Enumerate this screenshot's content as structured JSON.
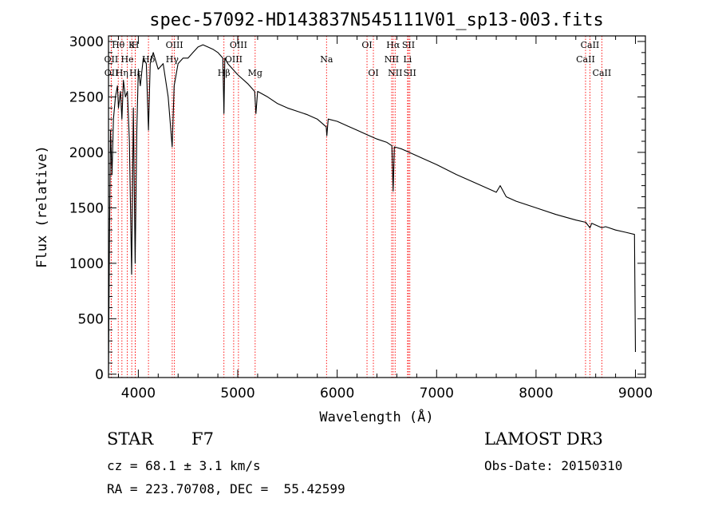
{
  "chart_data": {
    "type": "line",
    "title": "spec-57092-HD143837N545111V01_sp13-003.fits",
    "xlabel": "Wavelength (Å)",
    "ylabel": "Flux (relative)",
    "xlim": [
      3700,
      9100
    ],
    "ylim": [
      -30,
      3050
    ],
    "xticks": [
      4000,
      5000,
      6000,
      7000,
      8000,
      9000
    ],
    "yticks": [
      0,
      500,
      1000,
      1500,
      2000,
      2500,
      3000
    ],
    "grid": false,
    "spectrum": {
      "name": "flux",
      "x": [
        3700,
        3710,
        3720,
        3735,
        3750,
        3770,
        3790,
        3800,
        3820,
        3835,
        3850,
        3870,
        3890,
        3910,
        3933,
        3950,
        3968,
        3985,
        4000,
        4020,
        4050,
        4080,
        4102,
        4120,
        4150,
        4200,
        4250,
        4300,
        4340,
        4360,
        4400,
        4450,
        4500,
        4550,
        4600,
        4650,
        4700,
        4750,
        4800,
        4850,
        4861,
        4870,
        4900,
        4950,
        5000,
        5100,
        5170,
        5183,
        5200,
        5300,
        5400,
        5500,
        5600,
        5700,
        5800,
        5890,
        5896,
        5910,
        6000,
        6100,
        6200,
        6300,
        6400,
        6500,
        6550,
        6563,
        6575,
        6650,
        6700,
        6800,
        7000,
        7200,
        7400,
        7600,
        7640,
        7700,
        7800,
        8000,
        8200,
        8400,
        8500,
        8542,
        8560,
        8662,
        8700,
        8800,
        8900,
        8990,
        9000
      ],
      "y": [
        30,
        1200,
        2200,
        1800,
        2300,
        2500,
        2600,
        2400,
        2550,
        2300,
        2650,
        2500,
        2550,
        2100,
        900,
        2400,
        1000,
        2200,
        2750,
        2600,
        2850,
        2800,
        2200,
        2800,
        2900,
        2750,
        2800,
        2500,
        2050,
        2600,
        2800,
        2850,
        2850,
        2900,
        2950,
        2970,
        2950,
        2930,
        2900,
        2850,
        2350,
        2850,
        2800,
        2750,
        2700,
        2620,
        2550,
        2350,
        2550,
        2500,
        2440,
        2400,
        2370,
        2340,
        2300,
        2230,
        2150,
        2300,
        2280,
        2240,
        2200,
        2160,
        2120,
        2090,
        2060,
        1650,
        2050,
        2030,
        2010,
        1970,
        1890,
        1800,
        1720,
        1640,
        1700,
        1600,
        1560,
        1500,
        1440,
        1390,
        1370,
        1320,
        1360,
        1320,
        1330,
        1300,
        1280,
        1260,
        200
      ]
    },
    "lines": [
      {
        "label": "Hθ",
        "wavelength": 3798,
        "row": 0
      },
      {
        "label": "OII",
        "wavelength": 3727,
        "row": 1
      },
      {
        "label": "OII",
        "wavelength": 3729,
        "row": 2
      },
      {
        "label": "K",
        "wavelength": 3934,
        "row": 0
      },
      {
        "label": "He",
        "wavelength": 3889,
        "row": 1
      },
      {
        "label": "Hη",
        "wavelength": 3835,
        "row": 2
      },
      {
        "label": "H",
        "wavelength": 3969,
        "row": 0
      },
      {
        "label": "Hδ",
        "wavelength": 4102,
        "row": 1
      },
      {
        "label": "Hε",
        "wavelength": 3970,
        "row": 2
      },
      {
        "label": "OIII",
        "wavelength": 4363,
        "row": 0
      },
      {
        "label": "Hγ",
        "wavelength": 4341,
        "row": 1
      },
      {
        "label": "Hβ",
        "wavelength": 4861,
        "row": 2
      },
      {
        "label": "OIII",
        "wavelength": 5007,
        "row": 0
      },
      {
        "label": "OIII",
        "wavelength": 4959,
        "row": 1
      },
      {
        "label": "Mg",
        "wavelength": 5175,
        "row": 2
      },
      {
        "label": "Na",
        "wavelength": 5893,
        "row": 1
      },
      {
        "label": "OI",
        "wavelength": 6300,
        "row": 0
      },
      {
        "label": "OI",
        "wavelength": 6364,
        "row": 2
      },
      {
        "label": "Hα",
        "wavelength": 6563,
        "row": 0
      },
      {
        "label": "NII",
        "wavelength": 6548,
        "row": 1
      },
      {
        "label": "NII",
        "wavelength": 6583,
        "row": 2
      },
      {
        "label": "SII",
        "wavelength": 6717,
        "row": 0
      },
      {
        "label": "Li",
        "wavelength": 6708,
        "row": 1
      },
      {
        "label": "SII",
        "wavelength": 6731,
        "row": 2
      },
      {
        "label": "CaII",
        "wavelength": 8542,
        "row": 0
      },
      {
        "label": "CaII",
        "wavelength": 8498,
        "row": 1
      },
      {
        "label": "CaII",
        "wavelength": 8662,
        "row": 2
      }
    ]
  },
  "info": {
    "object_class": "STAR",
    "subclass": "F7",
    "survey": "LAMOST DR3",
    "cz": "cz = 68.1 ± 3.1 km/s",
    "obs_date": "Obs-Date: 20150310",
    "coords": "RA = 223.70708, DEC =  55.42599"
  },
  "colors": {
    "spectrum": "#000000",
    "line_marker": "#ff0000"
  }
}
